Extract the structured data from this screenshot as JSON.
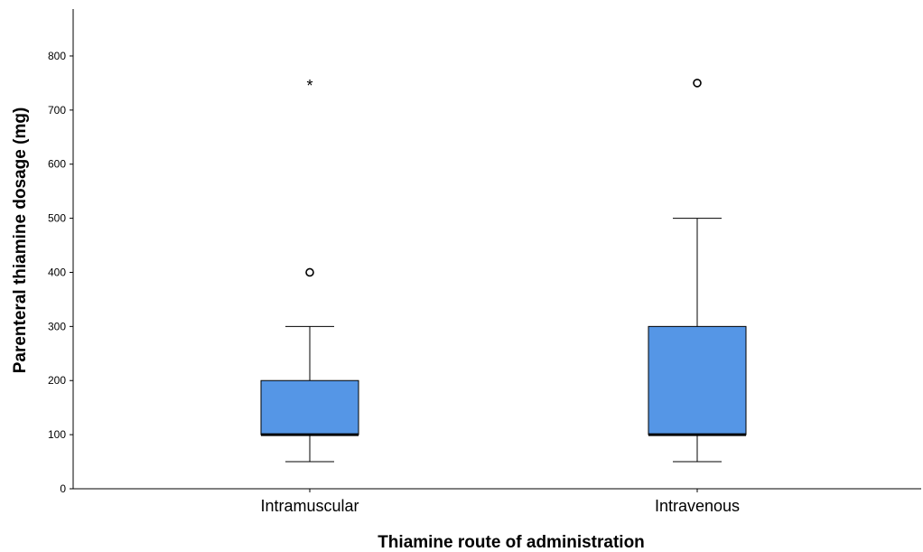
{
  "chart_data": {
    "type": "boxplot",
    "xlabel": "Thiamine route of administration",
    "ylabel": "Parenteral thiamine dosage (mg)",
    "ylim": [
      0,
      800
    ],
    "yticks": [
      0,
      100,
      200,
      300,
      400,
      500,
      600,
      700,
      800
    ],
    "categories": [
      "Intramuscular",
      "Intravenous"
    ],
    "box_color": "#5596e6",
    "grid": false,
    "boxes": [
      {
        "category": "Intramuscular",
        "whisker_low": 50,
        "q1": 100,
        "median": 100,
        "q3": 200,
        "whisker_high": 300,
        "outliers": [
          {
            "value": 400,
            "marker": "circle"
          }
        ],
        "extremes": [
          {
            "value": 750,
            "marker": "*"
          }
        ]
      },
      {
        "category": "Intravenous",
        "whisker_low": 50,
        "q1": 100,
        "median": 100,
        "q3": 300,
        "whisker_high": 500,
        "outliers": [
          {
            "value": 750,
            "marker": "circle"
          }
        ],
        "extremes": []
      }
    ]
  }
}
